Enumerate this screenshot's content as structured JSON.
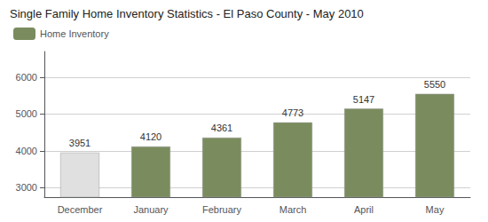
{
  "chart_data": {
    "type": "bar",
    "title": "Single Family Home Inventory Statistics - El Paso County - May 2010",
    "categories": [
      "December",
      "January",
      "February",
      "March",
      "April",
      "May"
    ],
    "series": [
      {
        "name": "Home Inventory",
        "values": [
          3951,
          4120,
          4361,
          4773,
          5147,
          5550
        ]
      }
    ],
    "colors": [
      "#e0e0e0",
      "#7a8c5e",
      "#7a8c5e",
      "#7a8c5e",
      "#7a8c5e",
      "#7a8c5e"
    ],
    "ylim": [
      2741,
      6700
    ],
    "yticks": [
      3000,
      4000,
      5000,
      6000
    ],
    "grid": true,
    "legend": "upper left",
    "data_labels": true
  }
}
